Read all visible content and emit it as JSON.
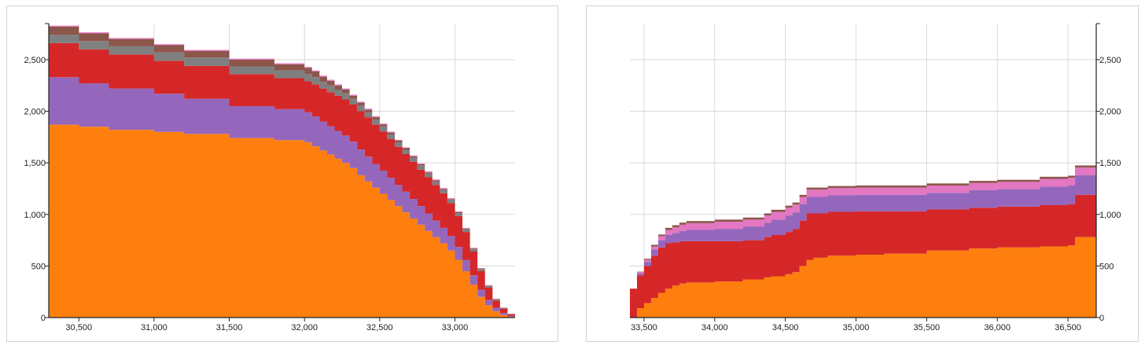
{
  "colors": {
    "orange": "#ff7f0e",
    "purple": "#9467bd",
    "red": "#d62728",
    "gray": "#7f7f7f",
    "brown": "#8c564b",
    "pink": "#e377c2",
    "grid": "#d9d9d9",
    "axis": "#222222"
  },
  "chart_data": [
    {
      "type": "area",
      "step": true,
      "stacked": true,
      "grid": true,
      "y_axis_side": "left",
      "xlim": [
        30300,
        33400
      ],
      "ylim": [
        0,
        2850
      ],
      "x_ticks": [
        30500,
        31000,
        31500,
        32000,
        32500,
        33000
      ],
      "x_tick_labels": [
        "30,500",
        "31,000",
        "31,500",
        "32,000",
        "32,500",
        "33,000"
      ],
      "y_ticks": [
        0,
        500,
        1000,
        1500,
        2000,
        2500
      ],
      "y_tick_labels": [
        "0",
        "500",
        "1,000",
        "1,500",
        "2,000",
        "2,500"
      ],
      "x": [
        30300,
        30500,
        30700,
        31000,
        31200,
        31500,
        31800,
        32000,
        32050,
        32100,
        32150,
        32200,
        32250,
        32300,
        32350,
        32400,
        32450,
        32500,
        32550,
        32600,
        32650,
        32700,
        32750,
        32800,
        32850,
        32900,
        32950,
        33000,
        33050,
        33100,
        33150,
        33200,
        33250,
        33300,
        33350,
        33400
      ],
      "series": [
        {
          "color_key": "orange",
          "values": [
            1870,
            1850,
            1820,
            1800,
            1780,
            1740,
            1720,
            1700,
            1660,
            1620,
            1580,
            1540,
            1500,
            1450,
            1380,
            1320,
            1260,
            1200,
            1140,
            1080,
            1020,
            960,
            900,
            840,
            780,
            720,
            650,
            560,
            450,
            320,
            200,
            120,
            60,
            25,
            8,
            0
          ]
        },
        {
          "color_key": "purple",
          "values": [
            460,
            420,
            400,
            370,
            340,
            310,
            300,
            290,
            290,
            280,
            275,
            270,
            265,
            255,
            250,
            240,
            230,
            225,
            215,
            205,
            200,
            190,
            180,
            170,
            160,
            150,
            140,
            125,
            110,
            90,
            70,
            50,
            35,
            20,
            8,
            0
          ]
        },
        {
          "color_key": "red",
          "values": [
            330,
            330,
            330,
            320,
            320,
            310,
            300,
            300,
            310,
            320,
            330,
            340,
            350,
            360,
            370,
            380,
            380,
            380,
            375,
            370,
            365,
            360,
            355,
            350,
            345,
            335,
            320,
            300,
            270,
            230,
            180,
            120,
            70,
            40,
            15,
            0
          ]
        },
        {
          "color_key": "gray",
          "values": [
            80,
            80,
            80,
            80,
            80,
            75,
            75,
            70,
            70,
            65,
            65,
            60,
            60,
            55,
            55,
            50,
            50,
            48,
            46,
            44,
            42,
            40,
            38,
            36,
            34,
            32,
            30,
            28,
            26,
            24,
            20,
            16,
            12,
            8,
            4,
            0
          ]
        },
        {
          "color_key": "brown",
          "values": [
            80,
            75,
            70,
            70,
            65,
            65,
            60,
            60,
            55,
            50,
            45,
            40,
            35,
            30,
            28,
            25,
            22,
            20,
            18,
            16,
            15,
            14,
            13,
            12,
            11,
            10,
            9,
            8,
            7,
            6,
            5,
            4,
            3,
            2,
            1,
            0
          ]
        },
        {
          "color_key": "pink",
          "values": [
            10,
            10,
            10,
            10,
            10,
            10,
            10,
            10,
            10,
            10,
            10,
            10,
            10,
            10,
            10,
            10,
            10,
            8,
            8,
            8,
            8,
            8,
            8,
            8,
            8,
            8,
            8,
            8,
            6,
            6,
            5,
            4,
            3,
            2,
            1,
            0
          ]
        }
      ]
    },
    {
      "type": "area",
      "step": true,
      "stacked": true,
      "grid": true,
      "y_axis_side": "right",
      "xlim": [
        33400,
        36700
      ],
      "ylim": [
        0,
        2850
      ],
      "x_ticks": [
        33500,
        34000,
        34500,
        35000,
        35500,
        36000,
        36500
      ],
      "x_tick_labels": [
        "33,500",
        "34,000",
        "34,500",
        "35,000",
        "35,500",
        "36,000",
        "36,500"
      ],
      "y_ticks": [
        0,
        500,
        1000,
        1500,
        2000,
        2500
      ],
      "y_tick_labels": [
        "0",
        "500",
        "1,000",
        "1,500",
        "2,000",
        "2,500"
      ],
      "x": [
        33400,
        33450,
        33500,
        33550,
        33600,
        33650,
        33700,
        33750,
        33800,
        34000,
        34200,
        34350,
        34400,
        34500,
        34550,
        34600,
        34650,
        34700,
        34800,
        35000,
        35200,
        35500,
        35800,
        36000,
        36300,
        36500,
        36550,
        36700
      ],
      "series": [
        {
          "color_key": "orange",
          "values": [
            0,
            90,
            140,
            190,
            240,
            280,
            310,
            330,
            340,
            350,
            370,
            390,
            400,
            420,
            440,
            500,
            560,
            580,
            600,
            610,
            620,
            650,
            670,
            680,
            690,
            700,
            780,
            800
          ]
        },
        {
          "color_key": "red",
          "values": [
            280,
            320,
            360,
            410,
            440,
            440,
            420,
            410,
            400,
            390,
            380,
            390,
            400,
            410,
            420,
            440,
            450,
            430,
            425,
            420,
            410,
            400,
            395,
            395,
            400,
            400,
            410,
            400
          ]
        },
        {
          "color_key": "purple",
          "values": [
            0,
            20,
            40,
            60,
            70,
            80,
            90,
            100,
            110,
            120,
            130,
            140,
            150,
            160,
            160,
            160,
            160,
            160,
            160,
            160,
            160,
            160,
            170,
            170,
            180,
            180,
            190,
            200
          ]
        },
        {
          "color_key": "pink",
          "values": [
            0,
            10,
            20,
            30,
            40,
            50,
            55,
            60,
            65,
            70,
            70,
            70,
            75,
            75,
            75,
            70,
            70,
            70,
            70,
            70,
            70,
            70,
            70,
            70,
            75,
            75,
            75,
            75
          ]
        },
        {
          "color_key": "brown",
          "values": [
            0,
            5,
            10,
            15,
            15,
            20,
            20,
            20,
            20,
            20,
            20,
            20,
            20,
            20,
            20,
            20,
            20,
            20,
            20,
            20,
            20,
            20,
            20,
            20,
            20,
            20,
            20,
            20
          ]
        }
      ]
    }
  ]
}
